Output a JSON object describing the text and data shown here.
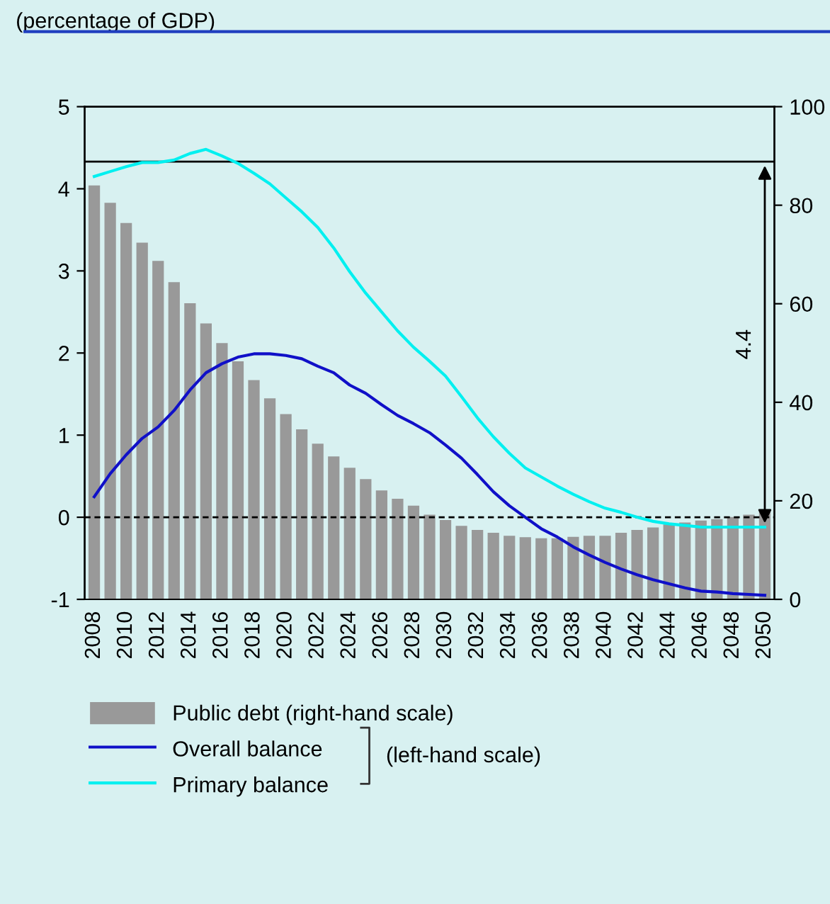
{
  "chart_data": {
    "type": "bar",
    "title": "(percentage of GDP)",
    "categories": [
      "2008",
      null,
      "2010",
      null,
      "2012",
      null,
      "2014",
      null,
      "2016",
      null,
      "2018",
      null,
      "2020",
      null,
      "2022",
      null,
      "2024",
      null,
      "2026",
      null,
      "2028",
      null,
      "2030",
      null,
      "2032",
      null,
      "2034",
      null,
      "2036",
      null,
      "2038",
      null,
      "2040",
      null,
      "2042",
      null,
      "2044",
      null,
      "2046",
      null,
      "2048",
      null,
      "2050"
    ],
    "series": [
      {
        "name": "Public debt (right-hand scale)",
        "axis": "y2",
        "color": "#999999",
        "values": [
          84,
          80.5,
          76.4,
          72.4,
          68.7,
          64.4,
          60.1,
          56,
          52,
          48.3,
          44.5,
          40.8,
          37.6,
          34.5,
          31.6,
          29,
          26.7,
          24.4,
          22.1,
          20.4,
          19,
          17.2,
          16.1,
          14.9,
          14.1,
          13.5,
          12.9,
          12.6,
          12.4,
          12.4,
          12.7,
          12.9,
          12.9,
          13.5,
          14.1,
          14.6,
          15.2,
          15.6,
          16,
          16.3,
          16.7,
          17.2,
          17.9
        ]
      },
      {
        "name": "Overall balance",
        "type": "line",
        "axis": "y",
        "color": "#1010c8",
        "values": [
          0.25,
          0.53,
          0.76,
          0.96,
          1.1,
          1.3,
          1.55,
          1.76,
          1.87,
          1.95,
          1.99,
          1.99,
          1.97,
          1.93,
          1.84,
          1.76,
          1.61,
          1.51,
          1.37,
          1.24,
          1.14,
          1.03,
          0.88,
          0.72,
          0.52,
          0.31,
          0.14,
          0.0,
          -0.14,
          -0.24,
          -0.36,
          -0.46,
          -0.55,
          -0.63,
          -0.7,
          -0.76,
          -0.81,
          -0.86,
          -0.9,
          -0.91,
          -0.93,
          -0.94,
          -0.95
        ]
      },
      {
        "name": "Primary balance",
        "type": "line",
        "axis": "y",
        "color": "#00f0f0",
        "values": [
          4.15,
          4.21,
          4.27,
          4.32,
          4.32,
          4.35,
          4.43,
          4.48,
          4.4,
          4.31,
          4.19,
          4.06,
          3.89,
          3.72,
          3.53,
          3.28,
          2.99,
          2.73,
          2.5,
          2.27,
          2.07,
          1.9,
          1.72,
          1.47,
          1.21,
          0.98,
          0.78,
          0.6,
          0.49,
          0.38,
          0.28,
          0.19,
          0.11,
          0.06,
          0.0,
          -0.05,
          -0.08,
          -0.1,
          -0.12,
          -0.12,
          -0.12,
          -0.12,
          -0.12
        ]
      }
    ],
    "ylim": [
      -1,
      5
    ],
    "yticks": [
      -1,
      0,
      1,
      2,
      3,
      4,
      5
    ],
    "y2lim": [
      0,
      100
    ],
    "y2ticks": [
      0,
      20,
      40,
      60,
      80,
      100
    ],
    "ref_lines": [
      {
        "axis": "y",
        "value": 0,
        "color": "#000000",
        "line_style": "dashed"
      },
      {
        "axis": "y",
        "value": 4.33,
        "color": "#000000",
        "line_style": "solid"
      }
    ],
    "annotations": [
      "4.4",
      "(left-hand scale)"
    ],
    "legend": "bottom",
    "grid": false
  }
}
